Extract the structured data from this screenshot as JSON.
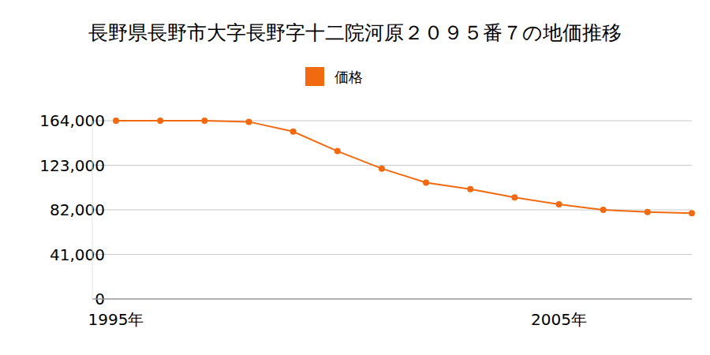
{
  "chart_data": {
    "type": "line",
    "title": "長野県長野市大字長野字十二院河原２０９５番７の地価推移",
    "categories": [
      "1995年",
      null,
      null,
      null,
      null,
      null,
      null,
      null,
      null,
      null,
      "2005年",
      null,
      null,
      null
    ],
    "series": [
      {
        "name": "価格",
        "color": "#f26a10",
        "marker": "circle",
        "values": [
          164000,
          164000,
          164000,
          163000,
          154000,
          136000,
          120000,
          107000,
          101000,
          93500,
          87000,
          82000,
          80000,
          79000
        ]
      }
    ],
    "ylim": [
      0,
      164000
    ],
    "yticks": [
      0,
      {
        "value": 41000,
        "label": "41,000"
      },
      {
        "value": 82000,
        "label": "82,000"
      },
      {
        "value": 123000,
        "label": "123,000"
      },
      {
        "value": 164000,
        "label": "164,000"
      }
    ],
    "grid": true,
    "legend": "top"
  }
}
